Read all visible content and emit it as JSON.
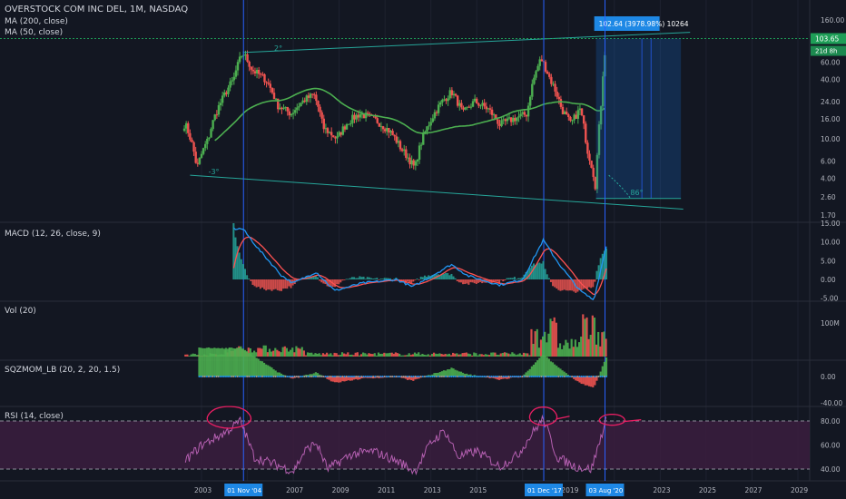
{
  "header": {
    "title": "OVERSTOCK COM INC DEL, 1M, NASDAQ",
    "ma200_label": "MA (200, close)",
    "ma50_label": "MA (50, close)"
  },
  "colors": {
    "background": "#131722",
    "up": "#26a69a",
    "up_bright": "#4caf50",
    "down": "#ef5350",
    "ma50": "#4caf50",
    "channel": "#26a69a",
    "vline": "#2962ff",
    "macd_line": "#2196f3",
    "signal_line": "#ff5252",
    "rsi_band": "#3b1d3e",
    "rsi_line": "#b45fb0",
    "annotation": "#e91e63",
    "price_tag": "#1e88e5",
    "last_price": "#1e9e57"
  },
  "annotations": {
    "measure_label": "102.64 (3978.98%) 10264",
    "last_price": "103.65",
    "countdown": "21d 8h",
    "channel_top_angle": "2°",
    "channel_bottom_angle": "-3°",
    "fib_angle": "86°"
  },
  "panes": {
    "macd_label": "MACD (12, 26, close, 9)",
    "vol_label": "Vol (20)",
    "sqz_label": "SQZMOM_LB (20, 2, 20, 1.5)",
    "rsi_label": "RSI (14, close)"
  },
  "chart_data": [
    {
      "type": "candlestick",
      "pane": "price",
      "scale": "log",
      "y_ticks": [
        "160.00",
        "103.65",
        "60.00",
        "40.00",
        "24.00",
        "16.00",
        "10.00",
        "6.00",
        "4.00",
        "2.60",
        "1.70"
      ],
      "x_ticks": [
        "2003",
        "2007",
        "2009",
        "2011",
        "2013",
        "2015",
        "2019",
        "2023",
        "2025",
        "2027",
        "2029"
      ],
      "x_markers": [
        "01 Nov '04",
        "01 Dec '17",
        "03 Aug '20"
      ],
      "anchors": [
        {
          "date": "2002.3",
          "close": 14
        },
        {
          "date": "2002.8",
          "close": 5
        },
        {
          "date": "2003.3",
          "close": 10
        },
        {
          "date": "2003.9",
          "close": 25
        },
        {
          "date": "2004.4",
          "close": 40
        },
        {
          "date": "2004.8",
          "close": 75
        },
        {
          "date": "2005.2",
          "close": 50
        },
        {
          "date": "2005.8",
          "close": 40
        },
        {
          "date": "2006.3",
          "close": 22
        },
        {
          "date": "2006.9",
          "close": 18
        },
        {
          "date": "2007.5",
          "close": 25
        },
        {
          "date": "2007.9",
          "close": 28
        },
        {
          "date": "2008.3",
          "close": 13
        },
        {
          "date": "2008.9",
          "close": 10
        },
        {
          "date": "2009.4",
          "close": 15
        },
        {
          "date": "2009.9",
          "close": 18
        },
        {
          "date": "2010.5",
          "close": 16
        },
        {
          "date": "2011.2",
          "close": 12
        },
        {
          "date": "2011.7",
          "close": 8
        },
        {
          "date": "2012.3",
          "close": 5
        },
        {
          "date": "2012.9",
          "close": 14
        },
        {
          "date": "2013.5",
          "close": 24
        },
        {
          "date": "2013.9",
          "close": 30
        },
        {
          "date": "2014.4",
          "close": 18
        },
        {
          "date": "2014.9",
          "close": 24
        },
        {
          "date": "2015.5",
          "close": 20
        },
        {
          "date": "2016.0",
          "close": 14
        },
        {
          "date": "2016.6",
          "close": 16
        },
        {
          "date": "2017.2",
          "close": 18
        },
        {
          "date": "2017.8",
          "close": 65
        },
        {
          "date": "2018.2",
          "close": 40
        },
        {
          "date": "2018.7",
          "close": 20
        },
        {
          "date": "2019.1",
          "close": 14
        },
        {
          "date": "2019.5",
          "close": 20
        },
        {
          "date": "2019.8",
          "close": 8
        },
        {
          "date": "2020.2",
          "close": 3
        },
        {
          "date": "2020.4",
          "close": 18
        },
        {
          "date": "2020.55",
          "close": 60
        },
        {
          "date": "2020.65",
          "close": 103
        }
      ]
    },
    {
      "type": "line",
      "pane": "macd",
      "y_ticks": [
        "15.00",
        "10.00",
        "5.00",
        "0.00",
        "-5.00"
      ],
      "series": [
        {
          "name": "MACD"
        },
        {
          "name": "Signal"
        }
      ],
      "anchors": [
        {
          "date": "2004.8",
          "macd": 13.5
        },
        {
          "date": "2005.5",
          "macd": 8
        },
        {
          "date": "2006.5",
          "macd": 1
        },
        {
          "date": "2007.0",
          "macd": -1
        },
        {
          "date": "2008.0",
          "macd": 2
        },
        {
          "date": "2008.8",
          "macd": -3
        },
        {
          "date": "2010.0",
          "macd": -1
        },
        {
          "date": "2011.5",
          "macd": 0
        },
        {
          "date": "2012.2",
          "macd": -2
        },
        {
          "date": "2013.9",
          "macd": 4
        },
        {
          "date": "2014.6",
          "macd": 1
        },
        {
          "date": "2016.0",
          "macd": -1.5
        },
        {
          "date": "2017.0",
          "macd": 0
        },
        {
          "date": "2017.9",
          "macd": 10.5
        },
        {
          "date": "2018.6",
          "macd": 4
        },
        {
          "date": "2019.5",
          "macd": -3
        },
        {
          "date": "2020.1",
          "macd": -5.5
        },
        {
          "date": "2020.65",
          "macd": 9
        }
      ]
    },
    {
      "type": "bar",
      "pane": "volume",
      "y_ticks": [
        "100M"
      ]
    },
    {
      "type": "bar",
      "pane": "squeeze_momentum",
      "y_ticks": [
        "0.00",
        "-40.00"
      ]
    },
    {
      "type": "line",
      "pane": "rsi",
      "y_ticks": [
        "80.00",
        "60.00",
        "40.00"
      ],
      "anchors": [
        {
          "date": "2002.3",
          "rsi": 47
        },
        {
          "date": "2003.0",
          "rsi": 60
        },
        {
          "date": "2004.0",
          "rsi": 70
        },
        {
          "date": "2004.7",
          "rsi": 80
        },
        {
          "date": "2005.3",
          "rsi": 50
        },
        {
          "date": "2006.5",
          "rsi": 42
        },
        {
          "date": "2007.0",
          "rsi": 38
        },
        {
          "date": "2007.5",
          "rsi": 55
        },
        {
          "date": "2008.0",
          "rsi": 62
        },
        {
          "date": "2008.5",
          "rsi": 40
        },
        {
          "date": "2009.5",
          "rsi": 52
        },
        {
          "date": "2010.5",
          "rsi": 55
        },
        {
          "date": "2011.7",
          "rsi": 45
        },
        {
          "date": "2012.3",
          "rsi": 38
        },
        {
          "date": "2013.0",
          "rsi": 62
        },
        {
          "date": "2013.6",
          "rsi": 72
        },
        {
          "date": "2014.2",
          "rsi": 50
        },
        {
          "date": "2015.0",
          "rsi": 55
        },
        {
          "date": "2016.0",
          "rsi": 42
        },
        {
          "date": "2016.8",
          "rsi": 52
        },
        {
          "date": "2017.5",
          "rsi": 72
        },
        {
          "date": "2017.9",
          "rsi": 82
        },
        {
          "date": "2018.5",
          "rsi": 50
        },
        {
          "date": "2019.3",
          "rsi": 42
        },
        {
          "date": "2020.0",
          "rsi": 40
        },
        {
          "date": "2020.65",
          "rsi": 82
        }
      ]
    }
  ]
}
